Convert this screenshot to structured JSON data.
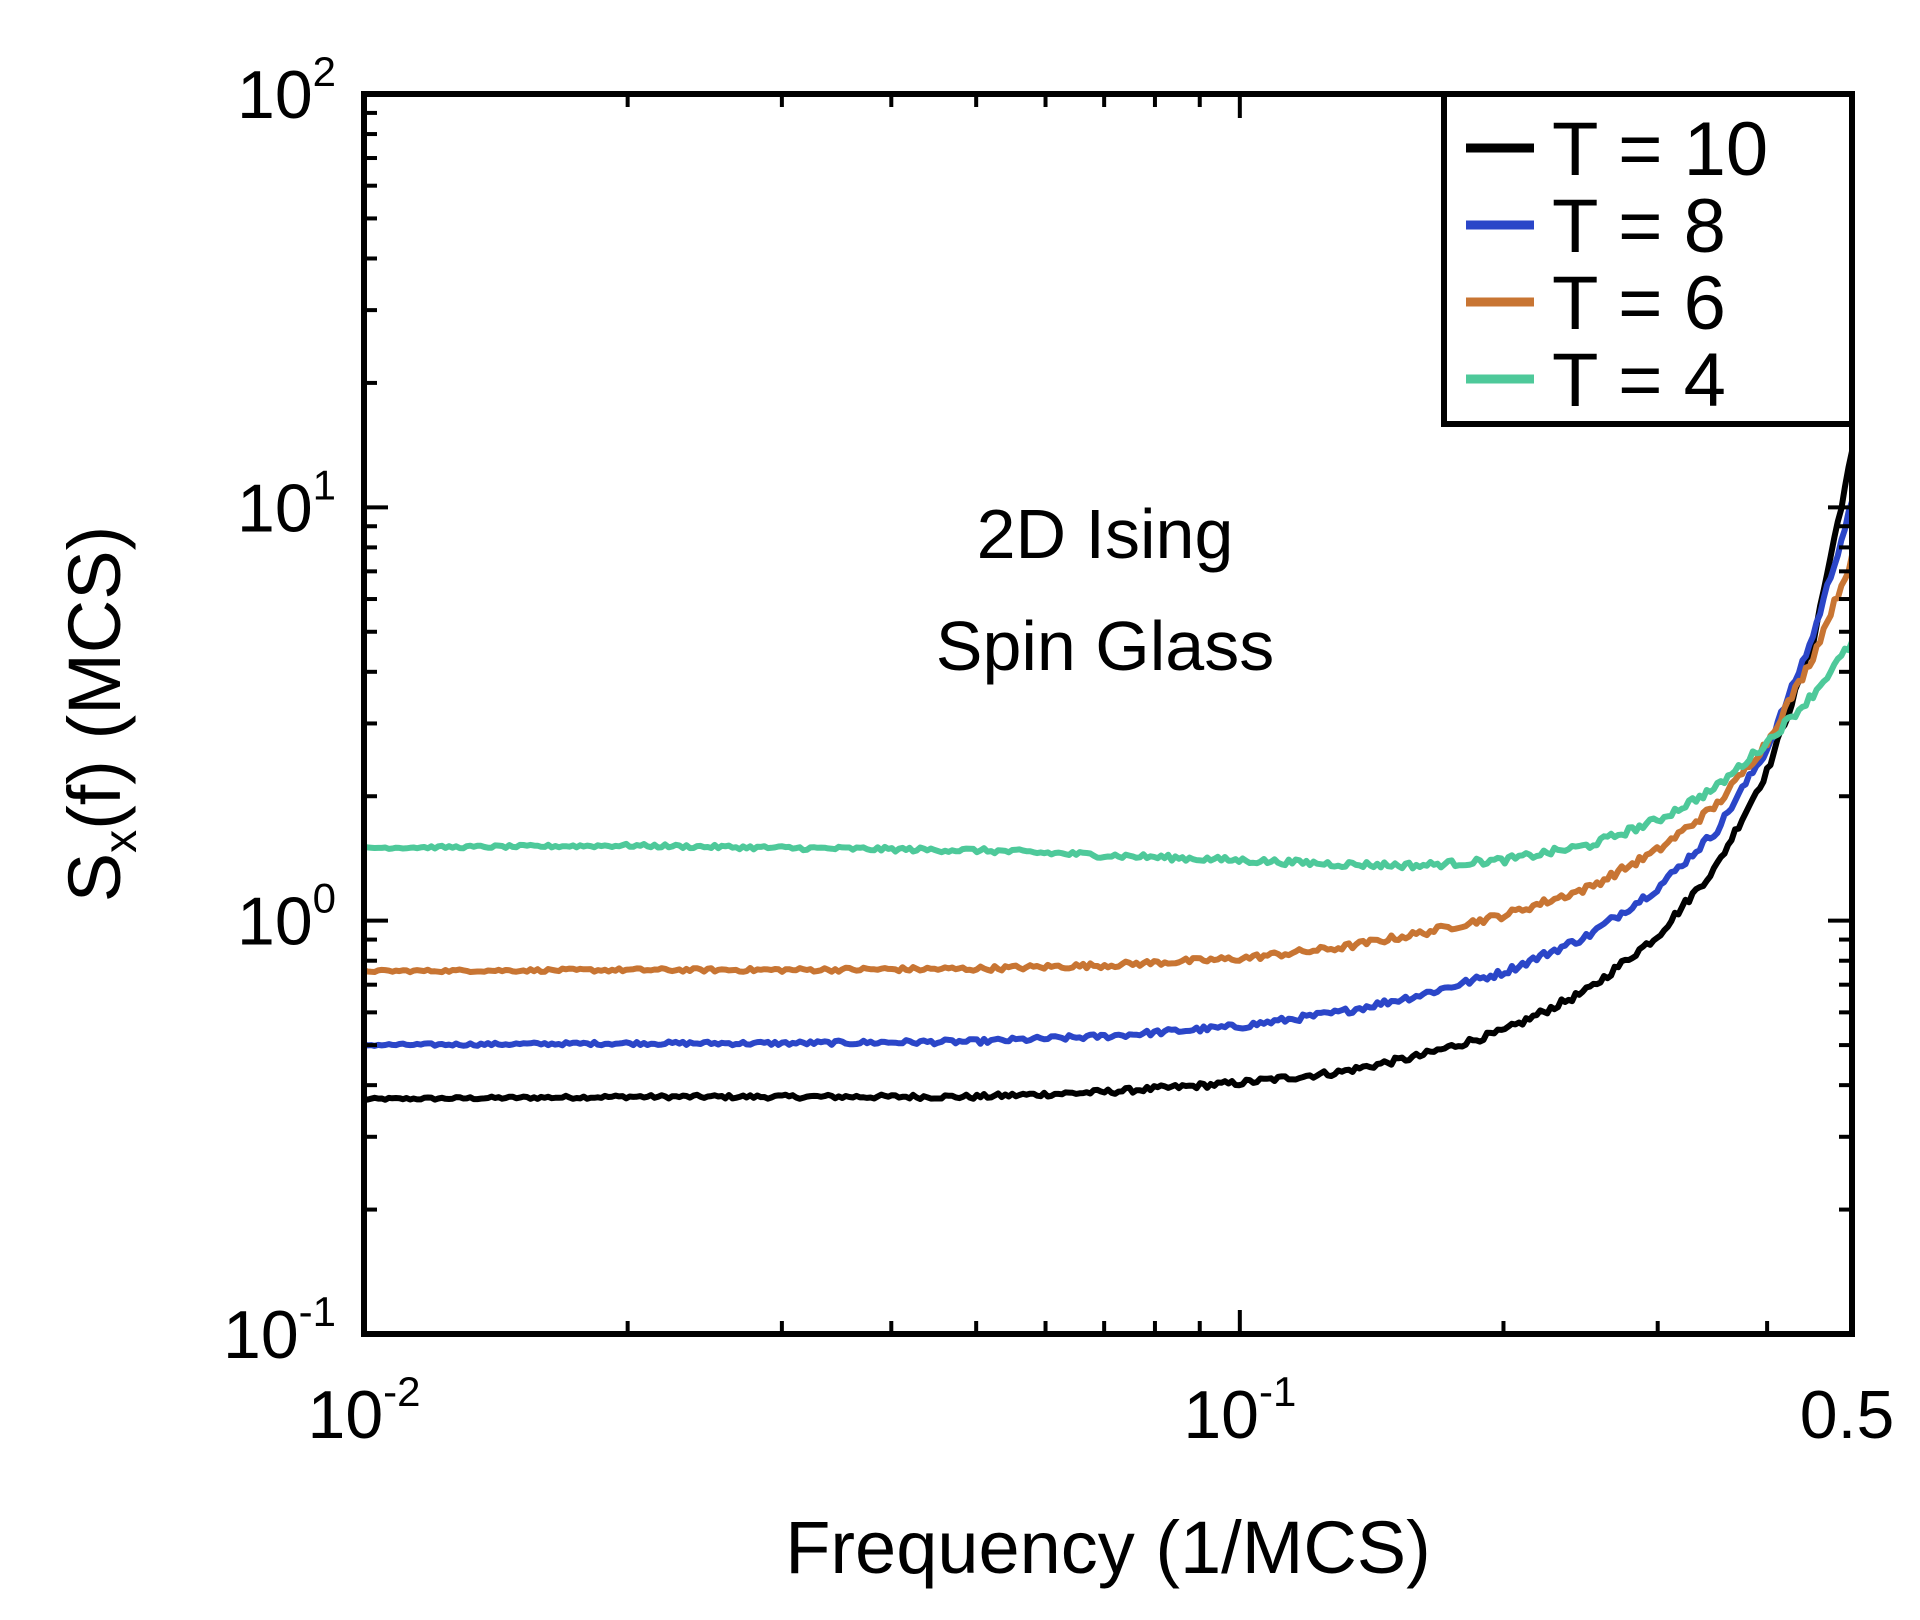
{
  "chart_data": {
    "type": "line",
    "title": "",
    "xlabel": "Frequency (1/MCS)",
    "ylabel": {
      "base": "S",
      "sub": "x",
      "rest": "(f) (MCS)"
    },
    "xscale": "log",
    "yscale": "log",
    "xlim": [
      0.01,
      0.5
    ],
    "ylim": [
      0.1,
      100
    ],
    "x_ticks": [
      {
        "value": 0.01,
        "base": "10",
        "exp": "-2"
      },
      {
        "value": 0.1,
        "base": "10",
        "exp": "-1"
      },
      {
        "value": 0.5,
        "base": "0.5",
        "exp": ""
      }
    ],
    "y_ticks": [
      {
        "value": 0.1,
        "base": "10",
        "exp": "-1"
      },
      {
        "value": 1,
        "base": "10",
        "exp": "0"
      },
      {
        "value": 10,
        "base": "10",
        "exp": "1"
      },
      {
        "value": 100,
        "base": "10",
        "exp": "2"
      }
    ],
    "annotation": [
      "2D Ising",
      "Spin Glass"
    ],
    "legend_position": "top-right",
    "grid": false,
    "series": [
      {
        "name": "T = 10",
        "color": "#000000",
        "points": [
          [
            0.01,
            0.37
          ],
          [
            0.02,
            0.375
          ],
          [
            0.03,
            0.375
          ],
          [
            0.05,
            0.375
          ],
          [
            0.07,
            0.385
          ],
          [
            0.1,
            0.405
          ],
          [
            0.13,
            0.43
          ],
          [
            0.16,
            0.47
          ],
          [
            0.2,
            0.54
          ],
          [
            0.25,
            0.68
          ],
          [
            0.3,
            0.92
          ],
          [
            0.35,
            1.35
          ],
          [
            0.4,
            2.3
          ],
          [
            0.45,
            4.6
          ],
          [
            0.5,
            13.5
          ]
        ]
      },
      {
        "name": "T = 8",
        "color": "#2b46c8",
        "points": [
          [
            0.01,
            0.5
          ],
          [
            0.02,
            0.505
          ],
          [
            0.03,
            0.505
          ],
          [
            0.05,
            0.51
          ],
          [
            0.07,
            0.525
          ],
          [
            0.1,
            0.555
          ],
          [
            0.13,
            0.6
          ],
          [
            0.16,
            0.66
          ],
          [
            0.2,
            0.75
          ],
          [
            0.25,
            0.92
          ],
          [
            0.3,
            1.2
          ],
          [
            0.35,
            1.65
          ],
          [
            0.4,
            2.6
          ],
          [
            0.45,
            4.8
          ],
          [
            0.5,
            10.2
          ]
        ]
      },
      {
        "name": "T = 6",
        "color": "#c87533",
        "points": [
          [
            0.01,
            0.755
          ],
          [
            0.02,
            0.76
          ],
          [
            0.03,
            0.76
          ],
          [
            0.05,
            0.765
          ],
          [
            0.07,
            0.78
          ],
          [
            0.1,
            0.81
          ],
          [
            0.13,
            0.86
          ],
          [
            0.16,
            0.93
          ],
          [
            0.2,
            1.03
          ],
          [
            0.25,
            1.2
          ],
          [
            0.3,
            1.48
          ],
          [
            0.35,
            1.9
          ],
          [
            0.4,
            2.7
          ],
          [
            0.45,
            4.3
          ],
          [
            0.5,
            7.5
          ]
        ]
      },
      {
        "name": "T = 4",
        "color": "#4ec99a",
        "points": [
          [
            0.01,
            1.5
          ],
          [
            0.02,
            1.52
          ],
          [
            0.03,
            1.5
          ],
          [
            0.05,
            1.48
          ],
          [
            0.07,
            1.44
          ],
          [
            0.1,
            1.4
          ],
          [
            0.13,
            1.37
          ],
          [
            0.16,
            1.36
          ],
          [
            0.2,
            1.4
          ],
          [
            0.25,
            1.52
          ],
          [
            0.3,
            1.75
          ],
          [
            0.35,
            2.1
          ],
          [
            0.4,
            2.7
          ],
          [
            0.45,
            3.5
          ],
          [
            0.5,
            4.7
          ]
        ]
      }
    ]
  }
}
